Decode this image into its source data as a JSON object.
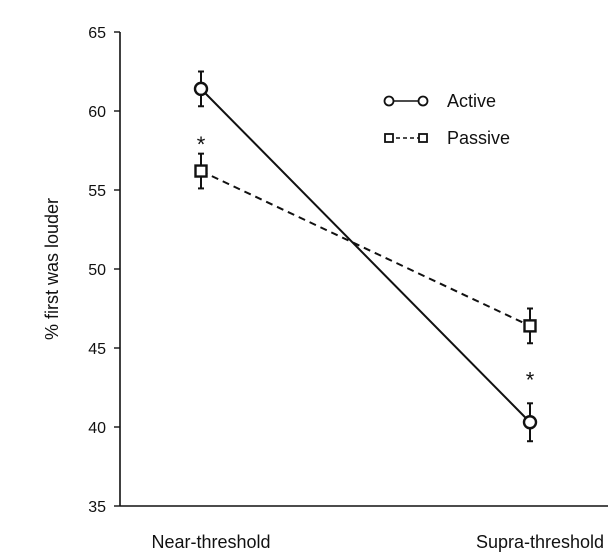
{
  "chart_data": {
    "type": "line",
    "title": "",
    "xlabel": "",
    "ylabel": "% first was louder",
    "categories": [
      "Near-threshold",
      "Supra-threshold"
    ],
    "ylim": [
      35,
      65
    ],
    "yticks": [
      35,
      40,
      45,
      50,
      55,
      60,
      65
    ],
    "grid": false,
    "legend_position": "top-right",
    "series": [
      {
        "name": "Active",
        "values": [
          61.4,
          40.3
        ],
        "errors": [
          1.1,
          1.2
        ],
        "marker": "circle",
        "line_style": "solid",
        "color": "#111111"
      },
      {
        "name": "Passive",
        "values": [
          56.2,
          46.4
        ],
        "errors": [
          1.1,
          1.1
        ],
        "marker": "square",
        "line_style": "dashed",
        "color": "#111111"
      }
    ],
    "annotations": [
      {
        "text": "*",
        "category_index": 0,
        "y": 57.9
      },
      {
        "text": "*",
        "category_index": 1,
        "y": 43.0
      }
    ]
  }
}
